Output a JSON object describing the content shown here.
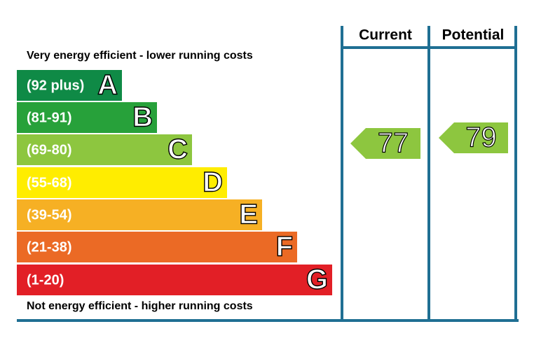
{
  "top_label": "Very energy efficient - lower running costs",
  "bottom_label": "Not energy efficient - higher running costs",
  "bands": [
    {
      "range": "(92 plus)",
      "letter": "A",
      "color": "#0f8a46"
    },
    {
      "range": "(81-91)",
      "letter": "B",
      "color": "#27a13a"
    },
    {
      "range": "(69-80)",
      "letter": "C",
      "color": "#8dc63f"
    },
    {
      "range": "(55-68)",
      "letter": "D",
      "color": "#ffed00"
    },
    {
      "range": "(39-54)",
      "letter": "E",
      "color": "#f6b024"
    },
    {
      "range": "(21-38)",
      "letter": "F",
      "color": "#eb6a25"
    },
    {
      "range": "(1-20)",
      "letter": "G",
      "color": "#e21f26"
    }
  ],
  "current": {
    "header": "Current",
    "value": "77",
    "color": "#8dc63f"
  },
  "potential": {
    "header": "Potential",
    "value": "79",
    "color": "#8dc63f"
  }
}
